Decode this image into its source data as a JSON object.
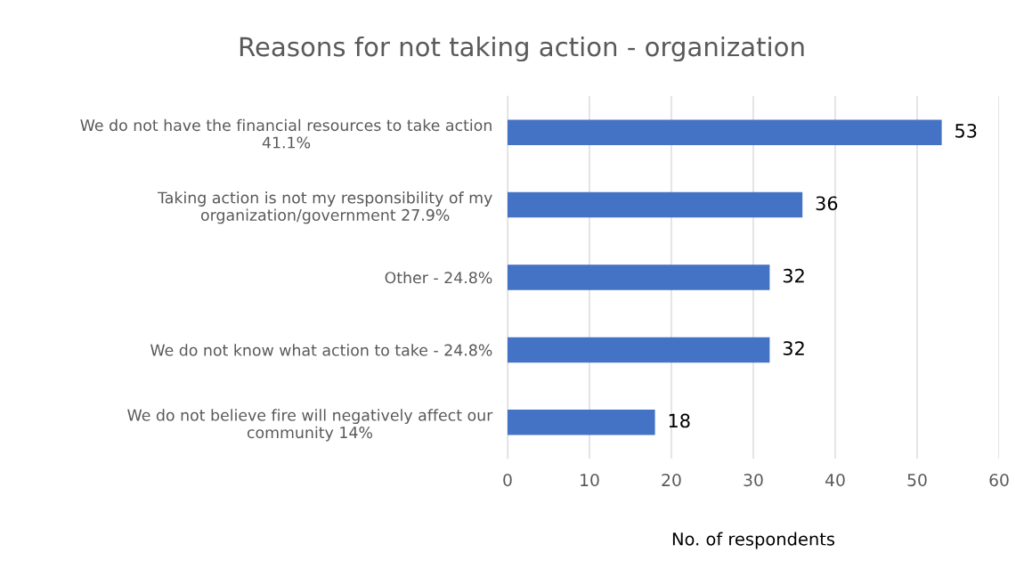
{
  "chart_data": {
    "type": "bar",
    "orientation": "horizontal",
    "title": "Reasons for not taking action - organization",
    "xlabel": "No. of respondents",
    "categories": [
      "We do not have the financial resources to take action\n41.1%",
      "Taking action is not my responsibility of my\norganization/government 27.9%",
      "Other - 24.8%",
      "We do not know what action to take - 24.8%",
      "We do not believe fire will negatively affect our\ncommunity 14%"
    ],
    "values": [
      53,
      36,
      32,
      32,
      18
    ],
    "color": "#4472c4",
    "data_labels": true,
    "xlim": [
      0,
      60
    ],
    "xticks": [
      0,
      10,
      20,
      30,
      40,
      50,
      60
    ],
    "grid": "x",
    "legend": false
  }
}
